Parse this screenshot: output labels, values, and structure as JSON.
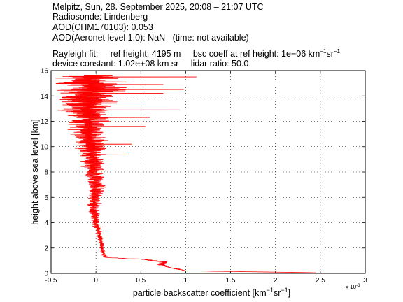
{
  "header": {
    "line1": "Melpitz, Sun, 28. September 2025, 20:08 – 21:07 UTC",
    "line2": "Radiosonde: Lindenberg",
    "line3": "AOD(CHM170103): 0.053",
    "line4_a": "AOD(Aeronet level 1.0): NaN",
    "line4_b": "(time: not available)",
    "rayleigh_label": "Rayleigh fit:",
    "ref_height": "ref height: 4195 m",
    "bsc_coeff_prefix": "bsc coeff at ref height: 1e−06 km",
    "unit_exp1": "−1",
    "unit_sr": "sr",
    "unit_exp2": "−1",
    "device_constant": "device constant: 1.02e+08 km sr",
    "lidar_ratio": "lidar ratio: 50.0"
  },
  "chart_data": {
    "type": "line",
    "xlabel_prefix": "particle backscatter coefficient [km",
    "xlabel_exp1": "−1",
    "xlabel_sr": "sr",
    "xlabel_exp2": "−1",
    "xlabel_suffix": "]",
    "ylabel": "height above sea level [km]",
    "x_multiplier_label": "x 10",
    "x_multiplier_exp": "-3",
    "xlim": [
      -0.5,
      3
    ],
    "ylim": [
      0,
      16
    ],
    "x_ticks": [
      "-0.5",
      "0",
      "0.5",
      "1",
      "1.5",
      "2",
      "2.5",
      "3"
    ],
    "y_ticks": [
      "0",
      "2",
      "4",
      "6",
      "8",
      "10",
      "12",
      "14",
      "16"
    ],
    "grid": true,
    "series_color": "#ff0000",
    "profile_knots": [
      {
        "y": 0.05,
        "x": 2.45,
        "amp": 0.0
      },
      {
        "y": 0.12,
        "x": 1.8,
        "amp": 0.0
      },
      {
        "y": 0.2,
        "x": 1.0,
        "amp": 0.03
      },
      {
        "y": 0.3,
        "x": 0.93,
        "amp": 0.03
      },
      {
        "y": 0.5,
        "x": 0.8,
        "amp": 0.03
      },
      {
        "y": 0.7,
        "x": 0.72,
        "amp": 0.04
      },
      {
        "y": 0.9,
        "x": 0.76,
        "amp": 0.04
      },
      {
        "y": 1.1,
        "x": 0.55,
        "amp": 0.05
      },
      {
        "y": 1.25,
        "x": 0.12,
        "amp": 0.03
      },
      {
        "y": 1.5,
        "x": 0.08,
        "amp": 0.02
      },
      {
        "y": 2.0,
        "x": 0.07,
        "amp": 0.02
      },
      {
        "y": 3.0,
        "x": 0.04,
        "amp": 0.03
      },
      {
        "y": 4.0,
        "x": 0.0,
        "amp": 0.04
      },
      {
        "y": 5.0,
        "x": -0.02,
        "amp": 0.05
      },
      {
        "y": 6.0,
        "x": -0.02,
        "amp": 0.07
      },
      {
        "y": 7.0,
        "x": 0.0,
        "amp": 0.09
      },
      {
        "y": 8.0,
        "x": -0.02,
        "amp": 0.1
      },
      {
        "y": 9.0,
        "x": -0.04,
        "amp": 0.11
      },
      {
        "y": 10.0,
        "x": -0.05,
        "amp": 0.14
      },
      {
        "y": 11.0,
        "x": -0.07,
        "amp": 0.16
      },
      {
        "y": 12.0,
        "x": -0.1,
        "amp": 0.2
      },
      {
        "y": 13.0,
        "x": -0.1,
        "amp": 0.25
      },
      {
        "y": 14.0,
        "x": -0.08,
        "amp": 0.3
      },
      {
        "y": 15.0,
        "x": -0.05,
        "amp": 0.32
      },
      {
        "y": 15.6,
        "x": -0.1,
        "amp": 0.3
      }
    ],
    "spikes": [
      {
        "y": 15.5,
        "x": 1.12
      },
      {
        "y": 15.4,
        "x": -0.45
      },
      {
        "y": 14.9,
        "x": 0.75
      },
      {
        "y": 14.5,
        "x": 0.98
      },
      {
        "y": 14.2,
        "x": 0.75
      },
      {
        "y": 13.6,
        "x": 0.55
      },
      {
        "y": 12.9,
        "x": 0.93
      },
      {
        "y": 12.3,
        "x": 0.6
      },
      {
        "y": 11.6,
        "x": 0.55
      },
      {
        "y": 10.2,
        "x": 0.4
      },
      {
        "y": 9.4,
        "x": 0.35
      },
      {
        "y": 0.15,
        "x": 1.6
      }
    ]
  }
}
